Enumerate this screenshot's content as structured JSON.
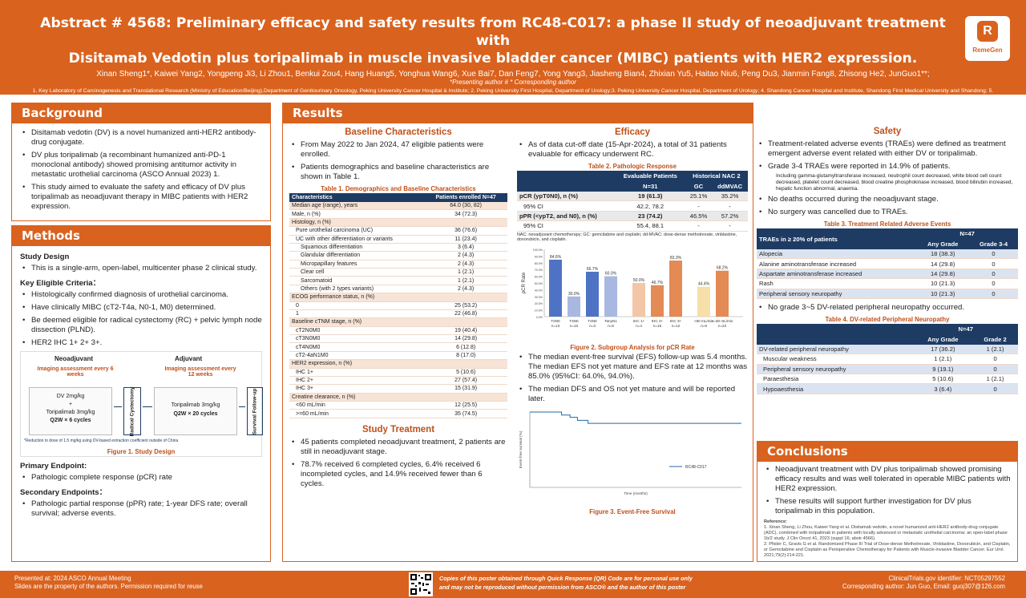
{
  "header": {
    "title_line1": "Abstract # 4568: Preliminary efficacy and safety results from RC48-C017: a phase II study of neoadjuvant treatment with",
    "title_line2": "Disitamab Vedotin plus toripalimab in muscle invasive bladder cancer (MIBC) patients with HER2 expression.",
    "authors": "Xinan Sheng1*, Kaiwei Yang2, Yongpeng Ji3, Li Zhou1, Benkui Zou4, Hang Huang5, Yonghua Wang6, Xue Bai7, Dan Feng7, Yong Yang3, Jiasheng Bian4, Zhixian Yu5, Haitao Niu6, Peng Du3, Jianmin Fang8, Zhisong He2, JunGuo1**;",
    "notes": "*Presenting author    # * Corresponding author",
    "affiliations": "1. Key Laboratory of Carcinogenesis and Translational Research (Ministry of Education/Beijing),Department of Genitourinary Oncology, Peking University Cancer Hospital & Institute; 2. Peking University First Hospital, Department of Urology;3. Peking University Cancer Hospital, Department of Urology; 4. Shandong Cancer Hospital and Institute, Shandong First Medical University and Shandong; 5. the First Affiliated Hospital of Wenzhou Medical University; 6. the Affiliated Hospital of Qingdao University; 7. RemeGenCo., Ltd.; 8. Department of Urology, Peking University Cancer Hospital; School of Life Science and Technology, Tongji University.",
    "logo_text": "RemeGen",
    "logo_mark": "R"
  },
  "background": {
    "heading": "Background",
    "items": [
      "Disitamab vedotin (DV) is a novel humanized anti-HER2 antibody-drug conjugate.",
      "DV plus toripalimab (a recombinant humanized anti-PD-1 monoclonal antibody) showed promising antitumor activity in metastatic urothelial carcinoma (ASCO Annual 2023) 1.",
      "This study aimed to evaluate the safety and efficacy of DV plus toripalimab as neoadjuvant therapy in MIBC patients with HER2 expression."
    ]
  },
  "methods": {
    "heading": "Methods",
    "design_title": "Study Design",
    "design_items": [
      "This is a single-arm, open-label, multicenter phase 2 clinical study."
    ],
    "criteria_title": "Key Eligible Criteria：",
    "criteria_items": [
      "Histologically confirmed diagnosis of urothelial carcinoma.",
      "Have clinically MIBC (cT2-T4a, N0-1, M0) determined.",
      "Be deemed eligible for radical cystectomy (RC) + pelvic lymph node dissection (PLND).",
      "HER2 IHC 1+ 2+ 3+."
    ],
    "fig1": {
      "neo_label": "Neoadjuvant",
      "adj_label": "Adjuvant",
      "neo_imaging": "Imaging assessment every 6 weeks",
      "adj_imaging": "Imaging assessment every 12 weeks",
      "dv": "DV 2mg/kg",
      "plus": "+",
      "tori": "Toripalimab 3mg/kg",
      "neo_cycles": "Q2W × 6 cycles",
      "rc": "Radical Cystectomy",
      "adj_drug": "Toripalimab 3mg/kg",
      "adj_cycles": "Q2W × 20 cycles",
      "fu": "Survival Follow-up",
      "footnote": "*Reduction to dose of 1.5 mg/kg using DV-based extraction coefficient outside of China",
      "caption": "Figure 1. Study Design"
    },
    "primary_title": "Primary Endpoint:",
    "primary_items": [
      "Pathologic complete response (pCR) rate"
    ],
    "secondary_title": "Secondary Endpoints：",
    "secondary_items": [
      "Pathologic partial response (pPR) rate; 1-year DFS rate; overall survival; adverse events."
    ]
  },
  "results": {
    "heading": "Results",
    "baseline": {
      "heading": "Baseline Characteristics",
      "items": [
        "From May 2022 to Jan 2024, 47 eligible patients were enrolled.",
        "Patients demographics and baseline characteristics are shown in Table 1."
      ],
      "table_caption": "Table 1. Demographics and Baseline Characteristics",
      "col1": "Characteristics",
      "col2": "Patients enrolled N=47",
      "rows": [
        {
          "label": "Median age (range), years",
          "value": "64.0 (30, 82)",
          "kind": "sec"
        },
        {
          "label": "Male, n (%)",
          "value": "34 (72.3)",
          "kind": "plain"
        },
        {
          "label": "Histology, n (%)",
          "value": "",
          "kind": "sec"
        },
        {
          "label": "Pure urothelial carcinoma (UC)",
          "value": "36 (76.6)",
          "kind": "in"
        },
        {
          "label": "UC with other differentiation or variants",
          "value": "11 (23.4)",
          "kind": "in"
        },
        {
          "label": "Squamous differentiation",
          "value": "3 (6.4)",
          "kind": "in2"
        },
        {
          "label": "Glandular differentiation",
          "value": "2 (4.3)",
          "kind": "in2"
        },
        {
          "label": "Micropapillary features",
          "value": "2 (4.3)",
          "kind": "in2"
        },
        {
          "label": "Clear cell",
          "value": "1 (2.1)",
          "kind": "in2"
        },
        {
          "label": "Sarcomatoid",
          "value": "1 (2.1)",
          "kind": "in2"
        },
        {
          "label": "Others (with 2 types variants)",
          "value": "2 (4.3)",
          "kind": "in2"
        },
        {
          "label": "ECOG performance status, n (%)",
          "value": "",
          "kind": "sec"
        },
        {
          "label": "0",
          "value": "25 (53.2)",
          "kind": "in"
        },
        {
          "label": "1",
          "value": "22 (46.8)",
          "kind": "in"
        },
        {
          "label": "Baseline cTNM stage, n (%)",
          "value": "",
          "kind": "sec"
        },
        {
          "label": "cT2N0M0",
          "value": "19 (40.4)",
          "kind": "in"
        },
        {
          "label": "cT3N0M0",
          "value": "14 (29.8)",
          "kind": "in"
        },
        {
          "label": "cT4N0M0",
          "value": "6 (12.8)",
          "kind": "in"
        },
        {
          "label": "cT2-4aN1M0",
          "value": "8 (17.0)",
          "kind": "in"
        },
        {
          "label": "HER2 expression, n (%)",
          "value": "",
          "kind": "sec"
        },
        {
          "label": "IHC 1+",
          "value": "5 (10.6)",
          "kind": "in"
        },
        {
          "label": "IHC 2+",
          "value": "27 (57.4)",
          "kind": "in"
        },
        {
          "label": "IHC 3+",
          "value": "15 (31.9)",
          "kind": "in"
        },
        {
          "label": "Creatine clearance, n (%)",
          "value": "",
          "kind": "sec"
        },
        {
          "label": "<60 mL/min",
          "value": "12 (25.5)",
          "kind": "in"
        },
        {
          "label": ">=60 mL/min",
          "value": "35 (74.5)",
          "kind": "in"
        }
      ]
    },
    "treatment": {
      "heading": "Study Treatment",
      "items": [
        "45 patients completed neoadjuvant treatment, 2 patients are still in neoadjuvant stage.",
        "78.7% received 6 completed cycles, 6.4% received 6 incompleted cycles, and 14.9% received fewer than 6 cycles."
      ]
    },
    "efficacy": {
      "heading": "Efficacy",
      "items": [
        "As of data cut-off date (15-Apr-2024), a total of 31 patients evaluable for efficacy underwent RC."
      ],
      "table_caption": "Table 2. Pathologic Response",
      "col_eval": "Evaluable Patients",
      "col_hist": "Historical NAC 2",
      "n_label": "N=31",
      "gc": "GC",
      "ddmvac": "ddMVAC",
      "rows": [
        {
          "label": "pCR (ypT0N0), n (%)",
          "value": "19 (61.3)",
          "gc": "25.1%",
          "dd": "35.2%",
          "bold": true
        },
        {
          "label": "95% CI",
          "value": "42.2, 78.2",
          "gc": "-",
          "dd": "-",
          "bold": false
        },
        {
          "label": "pPR (<ypT2, and N0), n (%)",
          "value": "23 (74.2)",
          "gc": "46.5%",
          "dd": "57.2%",
          "bold": true
        },
        {
          "label": "95% CI",
          "value": "55.4, 88.1",
          "gc": "-",
          "dd": "-",
          "bold": false
        }
      ],
      "table_note": "NAC: neoadjuvant chemotherapy; GC: gemcitabine and cisplatin; dd-MVAC: dose-dense methotrexate, vinblastine, doxorubicin, and cisplatin.",
      "fig2_caption": "Figure 2. Subgroup Analysis for pCR Rate",
      "efs_items": [
        "The median event-free survival (EFS) follow-up was 5.4 months. The median EFS not yet mature and EFS rate at 12 months was 85.0% (95%CI: 64.0%, 94.0%).",
        "The median DFS and OS not yet mature and will be reported later."
      ],
      "fig3_caption": "Figure 3. Event-Free Survival",
      "fig3_legend": "RC48-C017",
      "fig3_xlabel": "Time (months)",
      "fig3_ylabel": "Event-free survival (%)"
    },
    "safety": {
      "heading": "Safety",
      "items": [
        "Treatment-related adverse events (TRAEs) were defined as treatment emergent adverse event related with either DV or toripalimab.",
        "Grade 3-4 TRAEs were reported in 14.9% of patients."
      ],
      "grade_note": "Including gamma-glutamyltransferase increased, neutrophil count decreased, white blood cell count decreased, platelet count decreased, blood creatine phosphokinase increased, blood bilirubin increased, hepatic function abnormal, anaemia.",
      "items2": [
        "No deaths occurred during the neoadjuvant stage.",
        "No surgery was cancelled due to TRAEs."
      ],
      "t3_caption": "Table 3. Treatment Related Adverse Events",
      "t3_col1": "TRAEs in ≥ 20% of patients",
      "t3_n": "N=47",
      "t3_any": "Any Grade",
      "t3_g34": "Grade 3-4",
      "t3_rows": [
        {
          "label": "Alopecia",
          "any": "18 (38.3)",
          "g": "0"
        },
        {
          "label": "Alanine aminotransferase increased",
          "any": "14 (29.8)",
          "g": "0"
        },
        {
          "label": "Aspartate aminotransferase increased",
          "any": "14 (29.8)",
          "g": "0"
        },
        {
          "label": "Rash",
          "any": "10 (21.3)",
          "g": "0"
        },
        {
          "label": "Peripheral sensory neuropathy",
          "any": "10 (21.3)",
          "g": "0"
        }
      ],
      "items3": [
        "No grade 3~5 DV-related peripheral neuropathy occurred."
      ],
      "t4_caption": "Table 4. DV-related Peripheral Neuropathy",
      "t4_n": "N=47",
      "t4_any": "Any Grade",
      "t4_g2": "Grade 2",
      "t4_rows": [
        {
          "label": "DV-related peripheral neuropathy",
          "any": "17 (36.2)",
          "g": "1 (2.1)",
          "in": false
        },
        {
          "label": "Muscular weakness",
          "any": "1 (2.1)",
          "g": "0",
          "in": true
        },
        {
          "label": "Peripheral sensory neuropathy",
          "any": "9 (19.1)",
          "g": "0",
          "in": true
        },
        {
          "label": "Paraesthesia",
          "any": "5 (10.6)",
          "g": "1 (2.1)",
          "in": true
        },
        {
          "label": "Hypoaesthesia",
          "any": "3 (6.4)",
          "g": "0",
          "in": true
        }
      ]
    }
  },
  "conclusions": {
    "heading": "Conclusions",
    "items": [
      "Neoadjuvant treatment with DV plus toripalimab showed promising efficacy results and was well tolerated in operable MIBC patients with HER2 expression.",
      "These results will support further investigation for DV plus toripalimab in this population."
    ],
    "ref_title": "Reference:",
    "refs": [
      "1. Xinan Sheng, Li Zhou, Kaiwei Yang et al. Disitamab vedotin, a novel humanized anti-HER2 antibody-drug conjugate (ADC), combined with toripalimab in patients with locally advanced or metastatic urothelial carcinoma: an open-label phase 1b/2 study. J Clin Oncol 41, 2023 (suppl 16; abstr 4566).",
      "2. Pfister C, Gravis G et al. Randomized Phase III Trial of Dose-dense Methotrexate, Vinblastine, Doxorubicin, and Cisplatin, or Gemcitabine and Cisplatin as Perioperative Chemotherapy for Patients with Muscle-invasive Bladder Cancer. Eur Urol. 2021;79(2):214-221."
    ]
  },
  "footer": {
    "left1": "Presented at: 2024 ASCO Annual Meeting",
    "left2": "Slides are the property of the authors. Permission required for reuse",
    "center1": "Copies of this poster obtained through Quick Response (QR) Code are for personal use only",
    "center2": "and may not be reproduced without permission from ASCO® and the author of this poster",
    "right1": "ClinicalTrials.gov identifier: NCT05297552",
    "right2": "Corresponding author: Jun Guo, Email: guoj307@126.com"
  },
  "colors": {
    "accent": "#d9621e",
    "navy": "#1e3b63",
    "bar_blue": "#4f73c4",
    "bar_light": "#a8b8e0",
    "bar_orange": "#e38a55",
    "bar_peach": "#f2c6a6",
    "bar_cream": "#f6dfa8"
  },
  "chart_data": [
    {
      "type": "bar",
      "title": "",
      "ylabel": "pCR Rate",
      "ylim": [
        0,
        100
      ],
      "yticks": [
        "0.0%",
        "10.0%",
        "20.0%",
        "30.0%",
        "40.0%",
        "50.0%",
        "60.0%",
        "70.0%",
        "80.0%",
        "90.0%",
        "100.0%"
      ],
      "categories": [
        "T2N0",
        "T3N0",
        "T4N0",
        "TanyN1",
        "IHC 1+",
        "IHC 2+",
        "IHC 3+",
        "<60 mL/min",
        ">=60 mL/min"
      ],
      "category_counts": [
        "n=13",
        "n=10",
        "n=3",
        "n=5",
        "n=4",
        "n=15",
        "n=12",
        "n=9",
        "n=22"
      ],
      "values": [
        84.6,
        30.0,
        66.7,
        60.0,
        50.0,
        46.7,
        83.3,
        44.4,
        68.2
      ],
      "labels": [
        "84.6%",
        "30.0%",
        "66.7%",
        "60.0%",
        "50.0%",
        "46.7%",
        "83.3%",
        "44.4%",
        "68.2%"
      ]
    },
    {
      "type": "line",
      "title": "",
      "xlabel": "Time (months)",
      "ylabel": "Event-free survival (%)",
      "xlim": [
        0,
        20
      ],
      "ylim": [
        0,
        100
      ],
      "series": [
        {
          "name": "RC48-C017",
          "x": [
            0,
            2,
            3,
            3.8,
            4.5,
            5.5,
            6.5,
            14,
            20
          ],
          "y": [
            100,
            100,
            96,
            93,
            89,
            85,
            85,
            85,
            85
          ]
        }
      ]
    }
  ]
}
